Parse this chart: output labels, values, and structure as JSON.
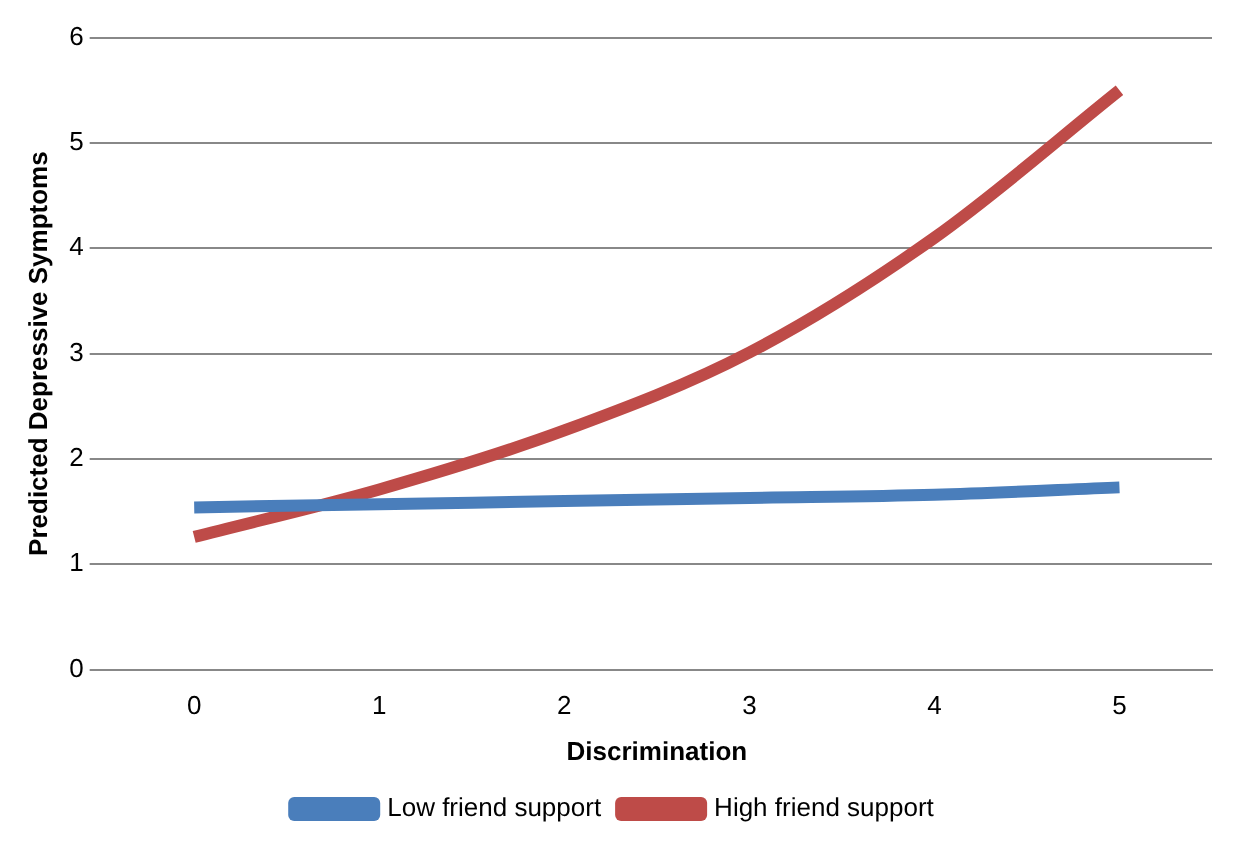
{
  "chart_data": {
    "type": "line",
    "xlabel": "Discrimination",
    "ylabel": "Predicted Depressive Symptoms",
    "categories": [
      "0",
      "1",
      "2",
      "3",
      "4",
      "5"
    ],
    "series": [
      {
        "name": "Low friend support",
        "color": "#4a7ebb",
        "values": [
          1.54,
          1.57,
          1.6,
          1.63,
          1.66,
          1.73
        ]
      },
      {
        "name": "High friend support",
        "color": "#be4b48",
        "values": [
          1.26,
          1.71,
          2.27,
          3.01,
          4.1,
          5.5
        ]
      }
    ],
    "ylim": [
      0,
      6
    ],
    "yticks": [
      0,
      1,
      2,
      3,
      4,
      5,
      6
    ],
    "grid": "y",
    "legend": "bottom",
    "marker": "none",
    "line_style": "solid"
  }
}
